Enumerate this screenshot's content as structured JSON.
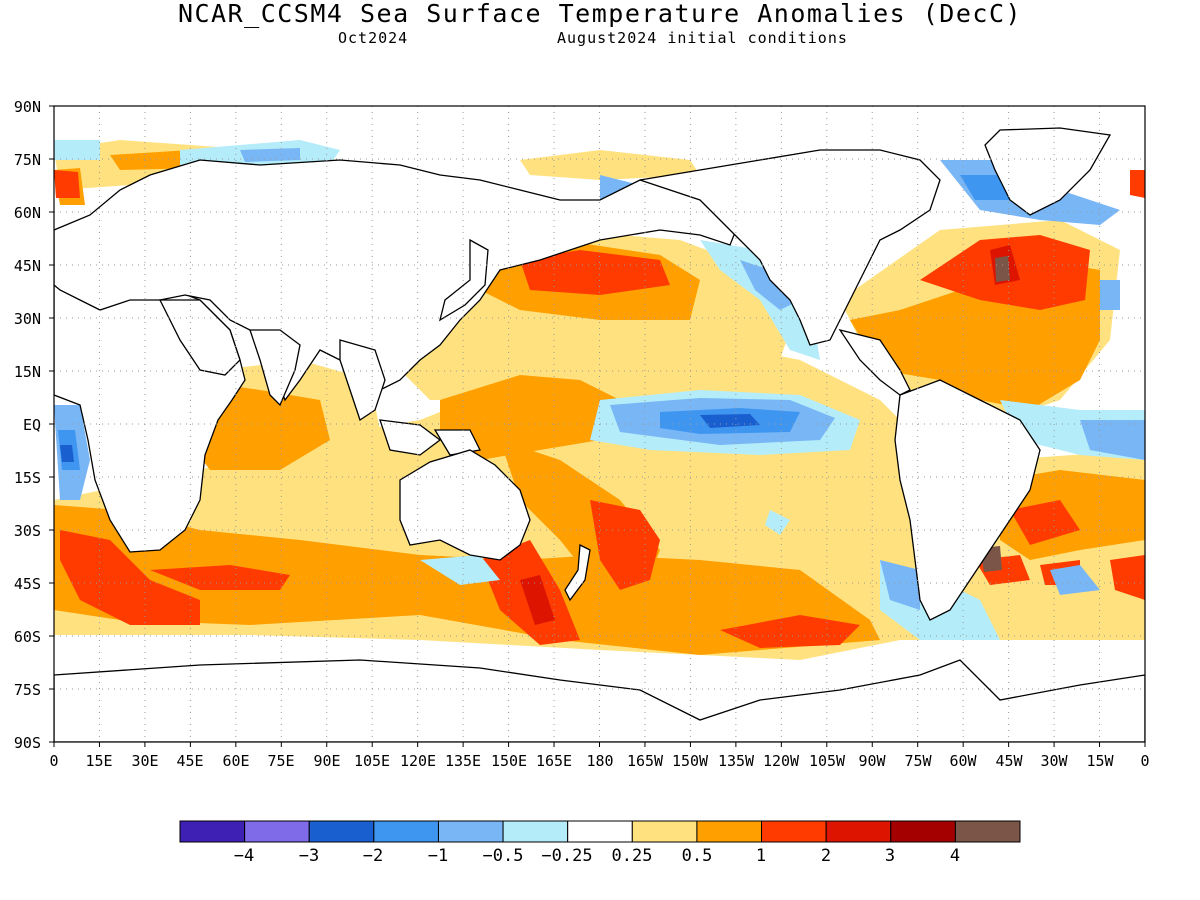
{
  "title": "NCAR_CCSM4 Sea Surface Temperature Anomalies (DecC)",
  "valid_month": "Oct2024",
  "initial_conditions": "August2024 initial conditions",
  "lat_labels": [
    "90N",
    "75N",
    "60N",
    "45N",
    "30N",
    "15N",
    "EQ",
    "15S",
    "30S",
    "45S",
    "60S",
    "75S",
    "90S"
  ],
  "lon_labels": [
    "0",
    "15E",
    "30E",
    "45E",
    "60E",
    "75E",
    "90E",
    "105E",
    "120E",
    "135E",
    "150E",
    "165E",
    "180",
    "165W",
    "150W",
    "135W",
    "120W",
    "105W",
    "90W",
    "75W",
    "60W",
    "45W",
    "30W",
    "15W",
    "0"
  ],
  "legend": {
    "colors": [
      "#3f20b5",
      "#7f6ae8",
      "#1a5fcf",
      "#3f96f0",
      "#78b6f6",
      "#b4ecf9",
      "#ffffff",
      "#ffe27f",
      "#ff9f00",
      "#ff3b00",
      "#dd1400",
      "#a50000",
      "#7a5548"
    ],
    "labels": [
      "−4",
      "−3",
      "−2",
      "−1",
      "−0.5",
      "−0.25",
      "0.25",
      "0.5",
      "1",
      "2",
      "3",
      "4"
    ]
  },
  "colors": {
    "land_outline": "#000000",
    "grid": "#9a9a9a"
  }
}
